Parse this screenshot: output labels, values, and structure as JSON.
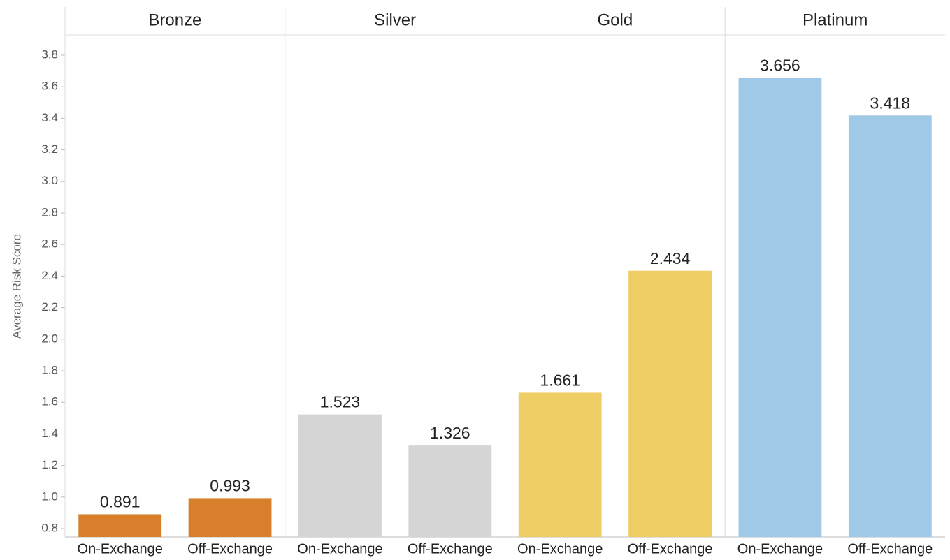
{
  "chart_data": {
    "type": "bar",
    "y_label": "Average Risk Score",
    "ylim": [
      0.747,
      3.928
    ],
    "yticks": [
      0.8,
      {
        "value": 1,
        "label": "1.0"
      },
      1.2,
      1.4,
      1.6,
      1.8,
      {
        "value": 2,
        "label": "2.0"
      },
      2.2,
      2.4,
      2.6,
      2.8,
      {
        "value": 3,
        "label": "3.0"
      },
      3.2,
      3.4,
      3.6,
      3.8
    ],
    "panels": [
      {
        "name": "Bronze",
        "color": "#d97f2b",
        "categories": [
          "On-Exchange",
          "Off-Exchange"
        ],
        "values": [
          0.891,
          0.993
        ]
      },
      {
        "name": "Silver",
        "color": "#d5d5d5",
        "categories": [
          "On-Exchange",
          "Off-Exchange"
        ],
        "values": [
          1.523,
          1.326
        ]
      },
      {
        "name": "Gold",
        "color": "#efcd65",
        "categories": [
          "On-Exchange",
          "Off-Exchange"
        ],
        "values": [
          1.661,
          2.434
        ]
      },
      {
        "name": "Platinum",
        "color": "#a0c9e8",
        "categories": [
          "On-Exchange",
          "Off-Exchange"
        ],
        "values": [
          3.656,
          3.418
        ]
      }
    ]
  }
}
